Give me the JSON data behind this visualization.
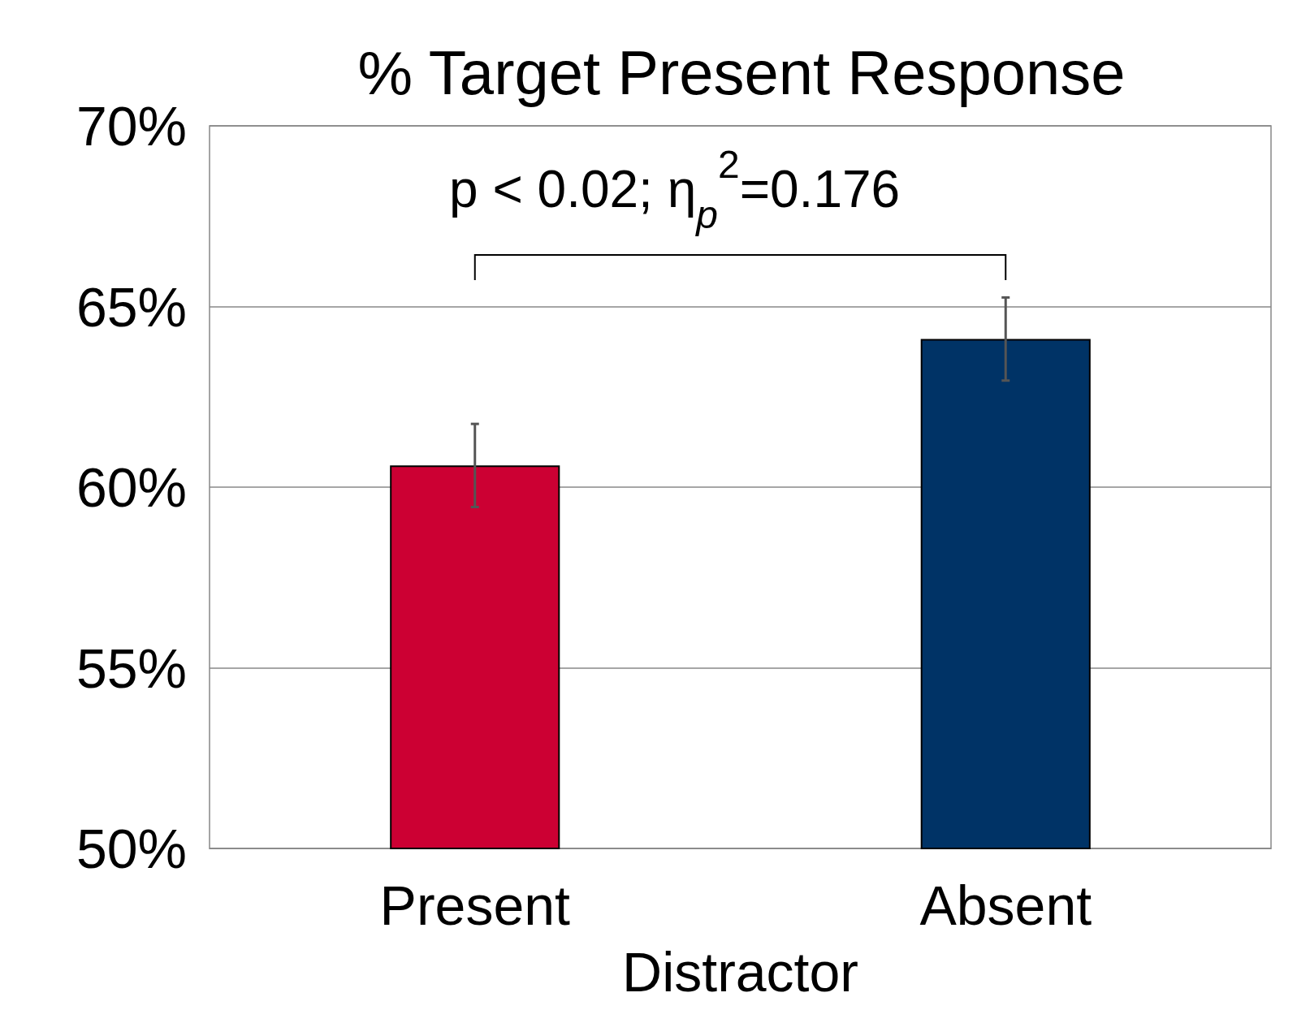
{
  "chart_data": {
    "type": "bar",
    "title": "% Target Present Response",
    "xlabel": "Distractor",
    "categories": [
      "Present",
      "Absent"
    ],
    "values": [
      60.6,
      64.1
    ],
    "colors": [
      "#cc0033",
      "#003366"
    ],
    "errors": [
      1.15,
      1.15
    ],
    "ylim": [
      50,
      70
    ],
    "yticks": [
      {
        "value": 50,
        "label": "50%"
      },
      {
        "value": 55,
        "label": "55%"
      },
      {
        "value": 60,
        "label": "60%"
      },
      {
        "value": 65,
        "label": "65%"
      },
      {
        "value": 70,
        "label": "70%"
      }
    ],
    "grid": "y",
    "annotations": [
      "p < 0.02; η$_{p}$$^{2}$=0.176"
    ]
  }
}
